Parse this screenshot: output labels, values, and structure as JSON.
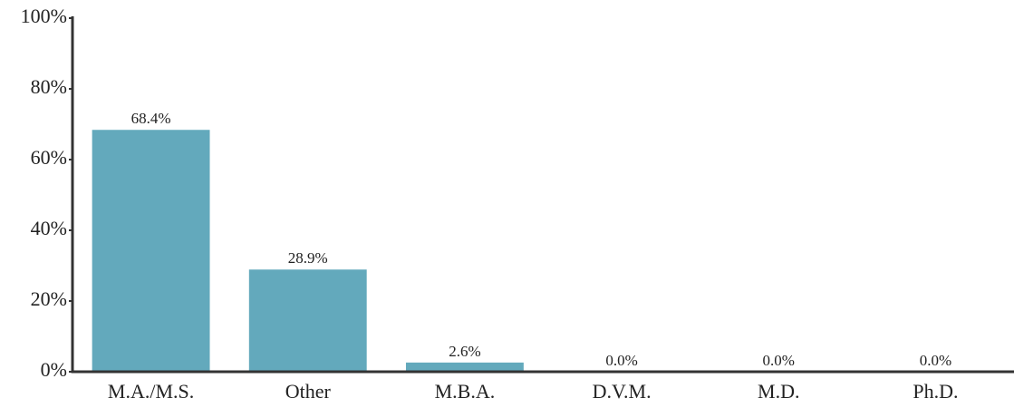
{
  "chart_data": {
    "type": "bar",
    "categories": [
      "M.A./M.S.",
      "Other",
      "M.B.A.",
      "D.V.M.",
      "M.D.",
      "Ph.D."
    ],
    "values": [
      68.4,
      28.9,
      2.6,
      0.0,
      0.0,
      0.0
    ],
    "value_labels": [
      "68.4%",
      "28.9%",
      "2.6%",
      "0.0%",
      "0.0%",
      "0.0%"
    ],
    "color": "#63a9bc",
    "ylim": [
      0,
      100
    ],
    "yticks": [
      {
        "value": 0,
        "label": "0%"
      },
      {
        "value": 20,
        "label": "20%"
      },
      {
        "value": 40,
        "label": "40%"
      },
      {
        "value": 60,
        "label": "60%"
      },
      {
        "value": 80,
        "label": "80%"
      },
      {
        "value": 100,
        "label": "100%"
      }
    ],
    "grid": false
  }
}
